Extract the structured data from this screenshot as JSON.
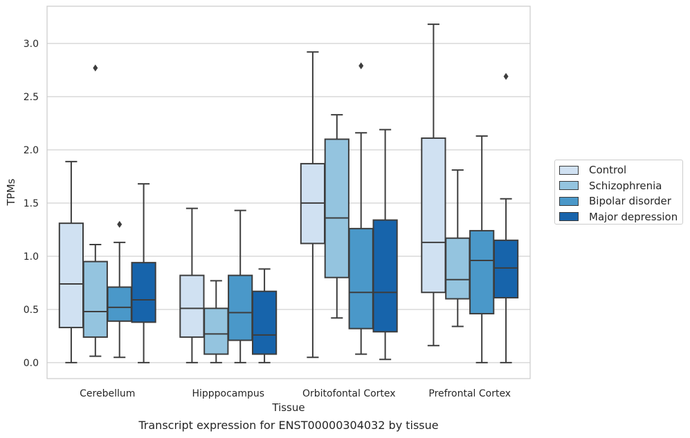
{
  "chart_data": {
    "type": "box",
    "categories": [
      "Cerebellum",
      "Hipppocampus",
      "Orbitofontal Cortex",
      "Prefrontal Cortex"
    ],
    "xlabel": "Tissue",
    "ylabel": "TPMs",
    "ylim": [
      -0.15,
      3.35
    ],
    "yticks": [
      0.0,
      0.5,
      1.0,
      1.5,
      2.0,
      2.5,
      3.0
    ],
    "ytick_labels": [
      "0.0",
      "0.5",
      "1.0",
      "1.5",
      "2.0",
      "2.5",
      "3.0"
    ],
    "grid": "horizontal",
    "legend_position": "right",
    "series": [
      {
        "name": "Control",
        "color": "#d0e1f2",
        "boxes": [
          {
            "whisker_low": 0.0,
            "q1": 0.33,
            "median": 0.74,
            "q3": 1.31,
            "whisker_high": 1.89,
            "outliers": []
          },
          {
            "whisker_low": 0.0,
            "q1": 0.24,
            "median": 0.51,
            "q3": 0.82,
            "whisker_high": 1.45,
            "outliers": []
          },
          {
            "whisker_low": 0.05,
            "q1": 1.12,
            "median": 1.5,
            "q3": 1.87,
            "whisker_high": 2.92,
            "outliers": []
          },
          {
            "whisker_low": 0.16,
            "q1": 0.66,
            "median": 1.13,
            "q3": 2.11,
            "whisker_high": 3.18,
            "outliers": []
          }
        ]
      },
      {
        "name": "Schizophrenia",
        "color": "#94c4df",
        "boxes": [
          {
            "whisker_low": 0.06,
            "q1": 0.24,
            "median": 0.48,
            "q3": 0.95,
            "whisker_high": 1.11,
            "outliers": [
              2.77
            ]
          },
          {
            "whisker_low": 0.0,
            "q1": 0.08,
            "median": 0.27,
            "q3": 0.51,
            "whisker_high": 0.77,
            "outliers": []
          },
          {
            "whisker_low": 0.42,
            "q1": 0.8,
            "median": 1.36,
            "q3": 2.1,
            "whisker_high": 2.33,
            "outliers": []
          },
          {
            "whisker_low": 0.34,
            "q1": 0.6,
            "median": 0.78,
            "q3": 1.17,
            "whisker_high": 1.81,
            "outliers": []
          }
        ]
      },
      {
        "name": "Bipolar disorder",
        "color": "#4a98c9",
        "boxes": [
          {
            "whisker_low": 0.05,
            "q1": 0.39,
            "median": 0.52,
            "q3": 0.71,
            "whisker_high": 1.13,
            "outliers": [
              1.3
            ]
          },
          {
            "whisker_low": 0.0,
            "q1": 0.21,
            "median": 0.47,
            "q3": 0.82,
            "whisker_high": 1.43,
            "outliers": []
          },
          {
            "whisker_low": 0.08,
            "q1": 0.32,
            "median": 0.66,
            "q3": 1.26,
            "whisker_high": 2.16,
            "outliers": [
              2.79
            ]
          },
          {
            "whisker_low": 0.0,
            "q1": 0.46,
            "median": 0.96,
            "q3": 1.24,
            "whisker_high": 2.13,
            "outliers": []
          }
        ]
      },
      {
        "name": "Major depression",
        "color": "#1764ab",
        "boxes": [
          {
            "whisker_low": 0.0,
            "q1": 0.38,
            "median": 0.59,
            "q3": 0.94,
            "whisker_high": 1.68,
            "outliers": []
          },
          {
            "whisker_low": 0.0,
            "q1": 0.08,
            "median": 0.26,
            "q3": 0.67,
            "whisker_high": 0.88,
            "outliers": []
          },
          {
            "whisker_low": 0.03,
            "q1": 0.29,
            "median": 0.66,
            "q3": 1.34,
            "whisker_high": 2.19,
            "outliers": []
          },
          {
            "whisker_low": 0.0,
            "q1": 0.61,
            "median": 0.89,
            "q3": 1.15,
            "whisker_high": 1.54,
            "outliers": [
              2.69
            ]
          }
        ]
      }
    ]
  },
  "caption": "Transcript expression for ENST00000304032 by tissue"
}
